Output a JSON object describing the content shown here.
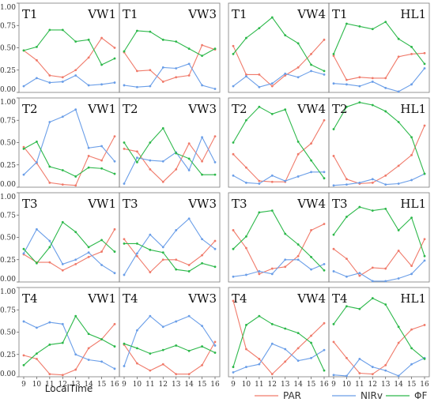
{
  "chart_data": {
    "type": "line",
    "xlabel": "LocalTime",
    "x": [
      9,
      10,
      11,
      12,
      13,
      14,
      15,
      16
    ],
    "xticks": [
      "9",
      "10",
      "11",
      "12",
      "13",
      "14",
      "15",
      "16"
    ],
    "ylim": [
      0,
      1
    ],
    "yticks": [
      "0.00",
      "0.25",
      "0.50",
      "0.75",
      "1.00"
    ],
    "legend": {
      "placement": "bottom",
      "items": [
        {
          "name": "PAR",
          "color": "#f07a6a"
        },
        {
          "name": "NIRv",
          "color": "#6a9ee8"
        },
        {
          "name": "ΦF",
          "color": "#2cb84a"
        }
      ]
    },
    "panels": [
      {
        "left": "T1",
        "right": "VW1",
        "series": {
          "PAR": [
            0.47,
            0.36,
            0.19,
            0.17,
            0.25,
            0.39,
            0.61,
            0.5
          ],
          "NIRv": [
            0.07,
            0.16,
            0.11,
            0.12,
            0.19,
            0.08,
            0.09,
            0.11
          ],
          "ΦF": [
            0.47,
            0.51,
            0.7,
            0.7,
            0.57,
            0.59,
            0.31,
            0.38
          ]
        }
      },
      {
        "left": "T1",
        "right": "VW3",
        "series": {
          "PAR": [
            0.45,
            0.24,
            0.25,
            0.12,
            0.17,
            0.19,
            0.53,
            0.48
          ],
          "NIRv": [
            0.08,
            0.06,
            0.07,
            0.28,
            0.27,
            0.32,
            0.08,
            0.04
          ],
          "ΦF": [
            0.46,
            0.69,
            0.68,
            0.59,
            0.57,
            0.49,
            0.41,
            0.49
          ]
        }
      },
      {
        "left": "T1",
        "right": "VW4",
        "series": {
          "PAR": [
            0.52,
            0.2,
            0.2,
            0.07,
            0.19,
            0.28,
            0.43,
            0.59
          ],
          "NIRv": [
            0.07,
            0.18,
            0.06,
            0.1,
            0.21,
            0.17,
            0.24,
            0.2
          ],
          "ΦF": [
            0.43,
            0.61,
            0.72,
            0.84,
            0.64,
            0.55,
            0.31,
            0.24
          ]
        }
      },
      {
        "left": "T1",
        "right": "HL1",
        "series": {
          "PAR": [
            0.41,
            0.14,
            0.17,
            0.16,
            0.16,
            0.4,
            0.43,
            0.44
          ],
          "NIRv": [
            0.1,
            0.09,
            0.07,
            0.12,
            0.05,
            0.01,
            0.09,
            0.27
          ],
          "ΦF": [
            0.43,
            0.77,
            0.74,
            0.71,
            0.79,
            0.6,
            0.51,
            0.32
          ]
        }
      },
      {
        "left": "T2",
        "right": "VW1",
        "series": {
          "PAR": [
            0.45,
            0.27,
            0.05,
            0.03,
            0.02,
            0.35,
            0.3,
            0.57
          ],
          "NIRv": [
            0.14,
            0.28,
            0.73,
            0.79,
            0.87,
            0.44,
            0.46,
            0.29
          ],
          "ΦF": [
            0.43,
            0.51,
            0.23,
            0.19,
            0.12,
            0.22,
            0.21,
            0.15
          ]
        }
      },
      {
        "left": "T2",
        "right": "VW3",
        "series": {
          "PAR": [
            0.43,
            0.4,
            0.2,
            0.06,
            0.2,
            0.49,
            0.29,
            0.57
          ],
          "NIRv": [
            0.04,
            0.33,
            0.3,
            0.29,
            0.39,
            0.19,
            0.56,
            0.28
          ],
          "ΦF": [
            0.5,
            0.28,
            0.5,
            0.66,
            0.38,
            0.32,
            0.14,
            0.14
          ]
        }
      },
      {
        "left": "T2",
        "right": "VW4",
        "series": {
          "PAR": [
            0.37,
            0.22,
            0.07,
            0.06,
            0.06,
            0.37,
            0.49,
            0.75
          ],
          "NIRv": [
            0.13,
            0.05,
            0.04,
            0.13,
            0.07,
            0.12,
            0.17,
            0.17
          ],
          "ΦF": [
            0.5,
            0.75,
            0.9,
            0.82,
            0.87,
            0.51,
            0.3,
            0.1
          ]
        }
      },
      {
        "left": "T2",
        "right": "HL1",
        "series": {
          "PAR": [
            0.35,
            0.09,
            0.04,
            0.05,
            0.13,
            0.24,
            0.36,
            0.69
          ],
          "NIRv": [
            0.02,
            0.03,
            0.05,
            0.09,
            0.03,
            0.04,
            0.08,
            0.15
          ],
          "ΦF": [
            0.65,
            0.9,
            0.95,
            0.92,
            0.85,
            0.73,
            0.56,
            0.15
          ]
        }
      },
      {
        "left": "T3",
        "right": "VW1",
        "series": {
          "PAR": [
            0.31,
            0.22,
            0.22,
            0.13,
            0.2,
            0.28,
            0.34,
            0.59
          ],
          "NIRv": [
            0.32,
            0.59,
            0.46,
            0.2,
            0.25,
            0.33,
            0.19,
            0.1
          ],
          "ΦF": [
            0.37,
            0.21,
            0.39,
            0.67,
            0.56,
            0.39,
            0.47,
            0.34
          ]
        }
      },
      {
        "left": "T3",
        "right": "VW3",
        "series": {
          "PAR": [
            0.48,
            0.29,
            0.11,
            0.25,
            0.25,
            0.19,
            0.3,
            0.46
          ],
          "NIRv": [
            0.08,
            0.32,
            0.53,
            0.39,
            0.58,
            0.71,
            0.48,
            0.37
          ],
          "ΦF": [
            0.43,
            0.43,
            0.36,
            0.33,
            0.14,
            0.12,
            0.21,
            0.17
          ]
        }
      },
      {
        "left": "T3",
        "right": "VW4",
        "series": {
          "PAR": [
            0.58,
            0.38,
            0.09,
            0.15,
            0.17,
            0.29,
            0.58,
            0.65
          ],
          "NIRv": [
            0.06,
            0.08,
            0.12,
            0.09,
            0.25,
            0.25,
            0.14,
            0.2
          ],
          "ΦF": [
            0.37,
            0.51,
            0.78,
            0.8,
            0.54,
            0.42,
            0.28,
            0.13
          ]
        }
      },
      {
        "left": "T3",
        "right": "HL1",
        "series": {
          "PAR": [
            0.37,
            0.26,
            0.07,
            0.16,
            0.15,
            0.35,
            0.18,
            0.48
          ],
          "NIRv": [
            0.12,
            0.06,
            0.1,
            0.01,
            0.01,
            0.04,
            0.09,
            0.24
          ],
          "ΦF": [
            0.53,
            0.73,
            0.84,
            0.8,
            0.82,
            0.58,
            0.72,
            0.29
          ]
        }
      },
      {
        "left": "T4",
        "right": "VW1",
        "series": {
          "PAR": [
            0.24,
            0.2,
            0.03,
            0.02,
            0.08,
            0.32,
            0.42,
            0.59
          ],
          "NIRv": [
            0.62,
            0.55,
            0.61,
            0.59,
            0.25,
            0.19,
            0.17,
            0.09
          ],
          "ΦF": [
            0.13,
            0.26,
            0.36,
            0.38,
            0.68,
            0.48,
            0.42,
            0.34
          ]
        }
      },
      {
        "left": "T4",
        "right": "VW3",
        "series": {
          "PAR": [
            0.36,
            0.15,
            0.07,
            0.14,
            0.03,
            0.03,
            0.13,
            0.39
          ],
          "NIRv": [
            0.12,
            0.52,
            0.68,
            0.56,
            0.62,
            0.68,
            0.57,
            0.35
          ],
          "ΦF": [
            0.37,
            0.32,
            0.26,
            0.3,
            0.35,
            0.29,
            0.34,
            0.27
          ]
        }
      },
      {
        "left": "T4",
        "right": "VW4",
        "series": {
          "PAR": [
            0.85,
            0.31,
            0.2,
            0.03,
            0.17,
            0.32,
            0.46,
            0.6
          ],
          "NIRv": [
            0.05,
            0.11,
            0.14,
            0.37,
            0.31,
            0.18,
            0.21,
            0.3
          ],
          "ΦF": [
            0.11,
            0.58,
            0.68,
            0.59,
            0.54,
            0.49,
            0.38,
            0.07
          ]
        }
      },
      {
        "left": "T4",
        "right": "HL1",
        "series": {
          "PAR": [
            0.39,
            0.21,
            0.04,
            0.03,
            0.13,
            0.38,
            0.53,
            0.58
          ],
          "NIRv": [
            0.02,
            0.01,
            0.2,
            0.11,
            0.07,
            0.01,
            0.14,
            0.21
          ],
          "ΦF": [
            0.59,
            0.79,
            0.76,
            0.88,
            0.81,
            0.56,
            0.32,
            0.2
          ]
        }
      }
    ]
  }
}
